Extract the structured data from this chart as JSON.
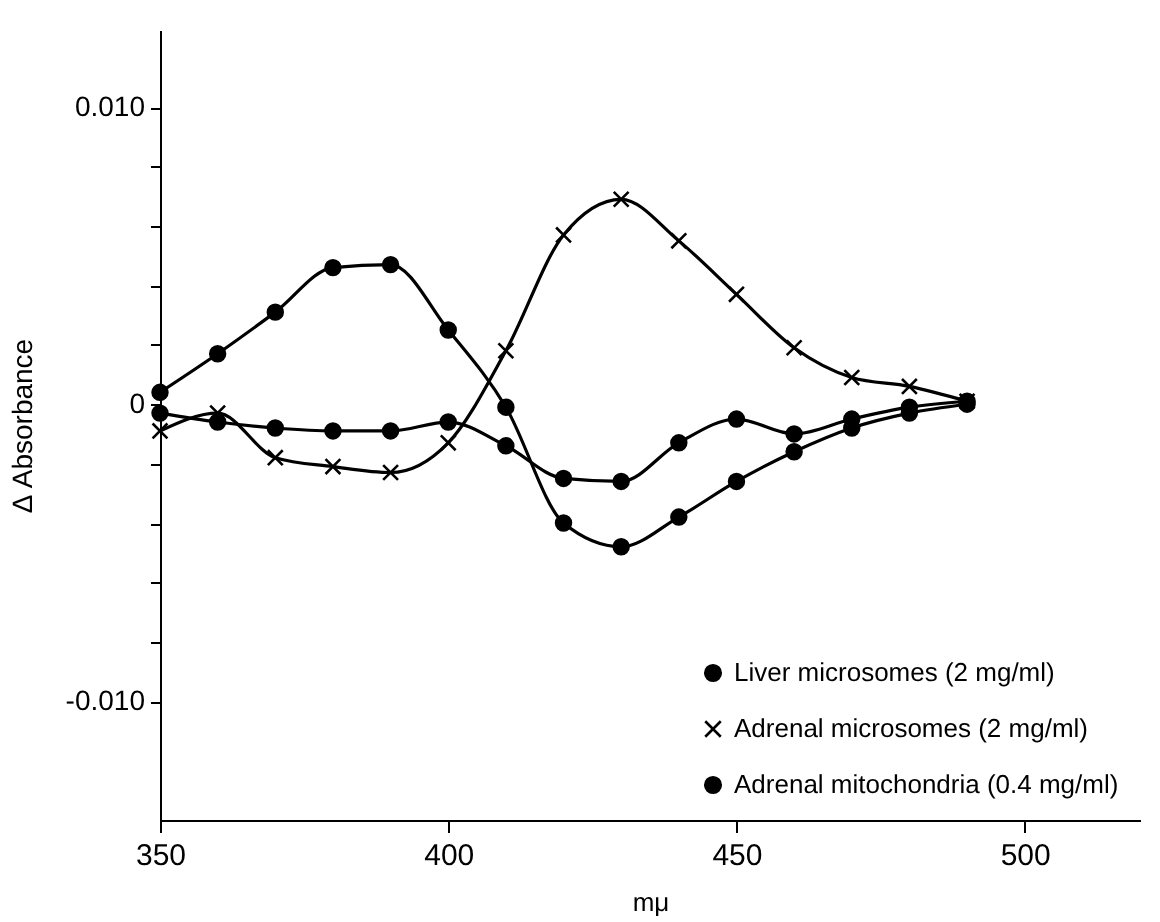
{
  "chart_data": {
    "type": "line",
    "xlabel": "mμ",
    "ylabel": "Δ Absorbance",
    "x": [
      350,
      360,
      370,
      380,
      390,
      400,
      410,
      420,
      430,
      440,
      450,
      460,
      470,
      480,
      490
    ],
    "series": [
      {
        "name": "Liver microsomes (2 mg/ml)",
        "color": "#000000",
        "marker": "circle",
        "values": [
          0.0004,
          0.0017,
          0.0031,
          0.0046,
          0.0047,
          0.0025,
          -0.0001,
          -0.004,
          -0.0048,
          -0.0038,
          -0.0026,
          -0.0016,
          -0.0008,
          -0.0003,
          0
        ]
      },
      {
        "name": "Adrenal microsomes (2 mg/ml)",
        "color": "#000000",
        "marker": "cross",
        "values": [
          -0.0009,
          -0.0003,
          -0.0018,
          -0.0021,
          -0.0023,
          -0.0013,
          0.0018,
          0.0057,
          0.0069,
          0.0055,
          0.0037,
          0.0019,
          0.0009,
          0.0006,
          0.0001
        ]
      },
      {
        "name": "Adrenal mitochondria (0.4 mg/ml)",
        "color": "#000000",
        "marker": "circle",
        "values": [
          -0.0003,
          -0.0006,
          -0.0008,
          -0.0009,
          -0.0009,
          -0.0006,
          -0.0014,
          -0.0025,
          -0.0026,
          -0.0013,
          -0.0005,
          -0.001,
          -0.0005,
          -0.0001,
          0.0001
        ]
      }
    ],
    "xlim": [
      350,
      520
    ],
    "xticks": [
      350,
      400,
      450,
      500
    ],
    "ylim": [
      -0.014,
      0.0126
    ],
    "yticks": [
      {
        "value": 0.01,
        "label": "0.010"
      },
      {
        "value": 0.008,
        "label": null
      },
      {
        "value": 0.006,
        "label": null
      },
      {
        "value": 0.004,
        "label": null
      },
      {
        "value": 0.002,
        "label": null
      },
      0,
      {
        "value": -0.002,
        "label": null
      },
      {
        "value": -0.004,
        "label": null
      },
      {
        "value": -0.006,
        "label": null
      },
      {
        "value": -0.008,
        "label": null
      },
      {
        "value": -0.01,
        "label": "-0.010"
      }
    ],
    "legend": "bottom right",
    "grid": false,
    "line_style": "solid"
  }
}
